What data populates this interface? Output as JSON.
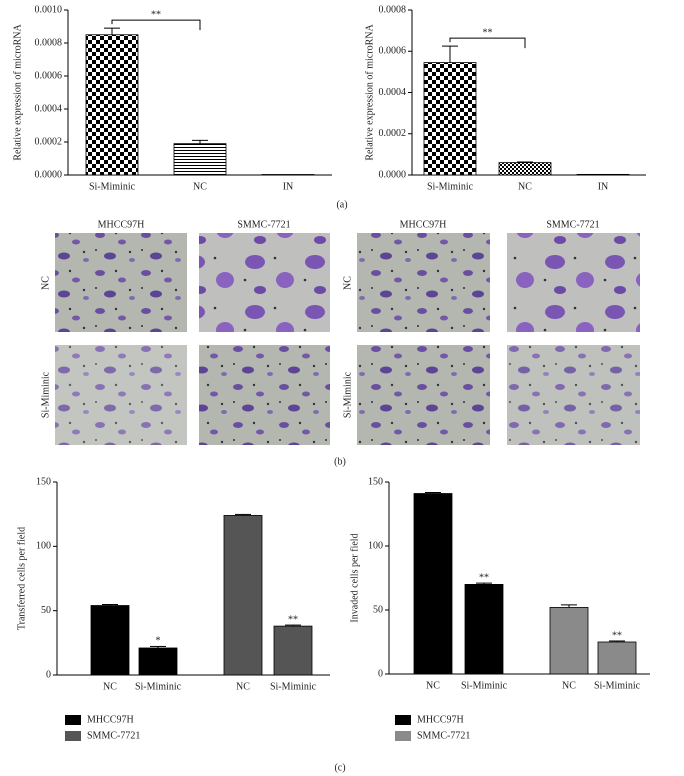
{
  "chart_data": [
    {
      "type": "bar",
      "categories": [
        "Si-Miminic",
        "NC",
        "IN"
      ],
      "values": [
        0.00085,
        0.00019,
        3e-06
      ],
      "errors": [
        4e-05,
        2e-05,
        0
      ],
      "patterns": [
        "checker",
        "hlines",
        "none"
      ],
      "color": "#000000",
      "ylabel": "Relative expression of microRNA",
      "ylim": [
        0,
        0.001
      ],
      "yticks": [
        {
          "value": 0,
          "label": "0.0000"
        },
        {
          "value": 0.0002,
          "label": "0.0002"
        },
        {
          "value": 0.0004,
          "label": "0.0004"
        },
        {
          "value": 0.0006,
          "label": "0.0006"
        },
        {
          "value": 0.0008,
          "label": "0.0008"
        },
        {
          "value": 0.001,
          "label": "0.0010"
        }
      ],
      "bracket": "**"
    },
    {
      "type": "bar",
      "categories": [
        "Si-Miminic",
        "NC",
        "IN"
      ],
      "values": [
        0.000545,
        6e-05,
        3e-06
      ],
      "errors": [
        8e-05,
        3e-06,
        0
      ],
      "patterns": [
        "checker",
        "finechecker",
        "none"
      ],
      "color": "#000000",
      "ylabel": "Relative expression of microRNA",
      "ylim": [
        0,
        0.0008
      ],
      "yticks": [
        {
          "value": 0,
          "label": "0.0000"
        },
        {
          "value": 0.0002,
          "label": "0.0002"
        },
        {
          "value": 0.0004,
          "label": "0.0004"
        },
        {
          "value": 0.0006,
          "label": "0.0006"
        },
        {
          "value": 0.0008,
          "label": "0.0008"
        }
      ],
      "bracket": "**"
    },
    {
      "type": "grouped_bar",
      "categories": [
        "NC",
        "Si-Miminic",
        "NC",
        "Si-Miminic"
      ],
      "series": [
        {
          "name": "MHCC97H",
          "color": "#000000",
          "values": [
            54,
            21,
            null,
            null
          ],
          "errors": [
            0.8,
            1.2,
            null,
            null
          ]
        },
        {
          "name": "SMMC-7721",
          "color": "#555555",
          "values": [
            null,
            null,
            124,
            38
          ],
          "errors": [
            null,
            null,
            0.8,
            0.8
          ]
        }
      ],
      "annotations": [
        null,
        "*",
        null,
        "**"
      ],
      "ylabel": "Transferred cells per field",
      "ylim": [
        0,
        150
      ],
      "yticks": [
        0,
        50,
        100,
        150
      ]
    },
    {
      "type": "grouped_bar",
      "categories": [
        "NC",
        "Si-Miminic",
        "NC",
        "Si-Miminic"
      ],
      "series": [
        {
          "name": "MHCC97H",
          "color": "#000000",
          "values": [
            141,
            70,
            null,
            null
          ],
          "errors": [
            0.8,
            1,
            null,
            null
          ]
        },
        {
          "name": "SMMC-7721",
          "color": "#8a8a8a",
          "values": [
            null,
            null,
            52,
            25
          ],
          "errors": [
            null,
            null,
            2,
            0.8
          ]
        }
      ],
      "annotations": [
        null,
        "**",
        null,
        "**"
      ],
      "ylabel": "Invaded cells per field",
      "ylim": [
        0,
        150
      ],
      "yticks": [
        0,
        50,
        100,
        150
      ]
    }
  ],
  "images": {
    "columns": [
      "MHCC97H",
      "SMMC-7721",
      "MHCC97H",
      "SMMC-7721"
    ],
    "rows": [
      "NC",
      "Si-Miminic",
      "NC",
      "Si-Miminic"
    ]
  },
  "panel_labels": [
    "(a)",
    "(b)",
    "(c)"
  ]
}
